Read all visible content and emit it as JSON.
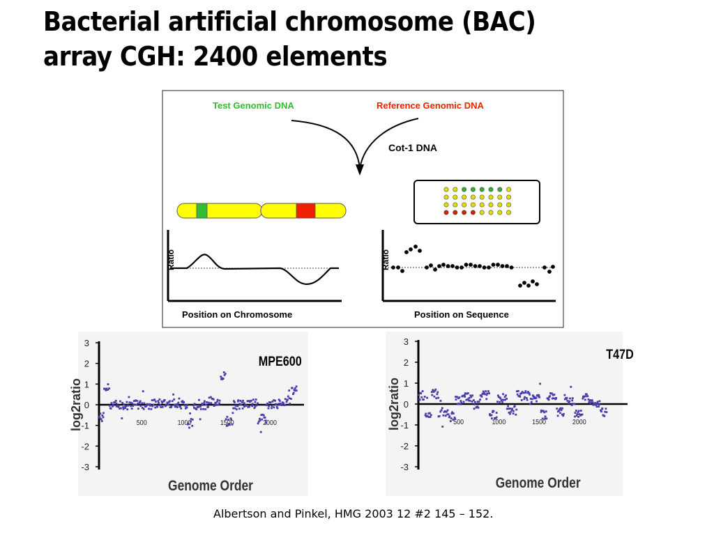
{
  "title_line1": "Bacterial artificial chromosome (BAC)",
  "title_line2": "array CGH: 2400 elements",
  "citation": "Albertson and Pinkel, HMG 2003 12 #2 145 – 152.",
  "schematic": {
    "test_label": "Test Genomic DNA",
    "reference_label": "Reference Genomic DNA",
    "cot1_label": "Cot-1  DNA",
    "left_plot_ylabel": "Ratio",
    "left_plot_xlabel": "Position on Chromosome",
    "right_plot_ylabel": "Ratio",
    "right_plot_xlabel": "Position on Sequence",
    "colors": {
      "test": "#33bb33",
      "reference": "#ee2200",
      "chromosome": "#ffff00",
      "array_yellow": "#dddd00",
      "array_red": "#cc2200",
      "array_green": "#33aa33"
    },
    "array_rows": [
      [
        "yellow",
        "yellow",
        "green",
        "green",
        "green",
        "green",
        "green",
        "yellow"
      ],
      [
        "yellow",
        "yellow",
        "yellow",
        "yellow",
        "yellow",
        "yellow",
        "yellow",
        "yellow"
      ],
      [
        "yellow",
        "yellow",
        "yellow",
        "yellow",
        "yellow",
        "yellow",
        "yellow",
        "yellow"
      ],
      [
        "red",
        "red",
        "red",
        "red",
        "yellow",
        "yellow",
        "yellow",
        "yellow"
      ]
    ]
  },
  "chart_data": [
    {
      "type": "scatter",
      "title": "MPE600",
      "xlabel": "Genome Order",
      "ylabel": "log2ratio",
      "ylim": [
        -3,
        3
      ],
      "xlim": [
        0,
        2400
      ],
      "yticks": [
        "3",
        "2",
        "1",
        "0",
        "-1",
        "-2",
        "-3"
      ],
      "xticks": [
        {
          "x": 500,
          "label": "500"
        },
        {
          "x": 1000,
          "label": "1000"
        },
        {
          "x": 1500,
          "label": "1500"
        },
        {
          "x": 2000,
          "label": "2000"
        }
      ],
      "series": [
        {
          "values_desc": "log2ratio per BAC clone",
          "segments": [
            {
              "x0": 0,
              "x1": 60,
              "y": -0.6
            },
            {
              "x0": 60,
              "x1": 120,
              "y": 0.8
            },
            {
              "x0": 120,
              "x1": 300,
              "y": 0.0
            },
            {
              "x0": 300,
              "x1": 480,
              "y": 0.0
            },
            {
              "x0": 480,
              "x1": 640,
              "y": 0.0
            },
            {
              "x0": 640,
              "x1": 800,
              "y": 0.05
            },
            {
              "x0": 800,
              "x1": 950,
              "y": 0.1
            },
            {
              "x0": 950,
              "x1": 1040,
              "y": 0.0
            },
            {
              "x0": 1040,
              "x1": 1100,
              "y": -0.9
            },
            {
              "x0": 1100,
              "x1": 1280,
              "y": 0.0
            },
            {
              "x0": 1280,
              "x1": 1420,
              "y": 0.15
            },
            {
              "x0": 1420,
              "x1": 1480,
              "y": 1.4
            },
            {
              "x0": 1480,
              "x1": 1560,
              "y": -0.8
            },
            {
              "x0": 1560,
              "x1": 1700,
              "y": 0.0
            },
            {
              "x0": 1700,
              "x1": 1860,
              "y": 0.05
            },
            {
              "x0": 1860,
              "x1": 1960,
              "y": -0.7
            },
            {
              "x0": 1960,
              "x1": 2150,
              "y": 0.05
            },
            {
              "x0": 2150,
              "x1": 2250,
              "y": 0.2
            },
            {
              "x0": 2250,
              "x1": 2320,
              "y": 0.7
            }
          ]
        }
      ]
    },
    {
      "type": "scatter",
      "title": "T47D",
      "xlabel": "Genome Order",
      "ylabel": "log2ratio",
      "ylim": [
        -3,
        3
      ],
      "xlim": [
        0,
        2600
      ],
      "yticks": [
        "3",
        "2",
        "1",
        "0",
        "-1",
        "-2",
        "-3"
      ],
      "xticks": [
        {
          "x": 500,
          "label": "500"
        },
        {
          "x": 1000,
          "label": "1000"
        },
        {
          "x": 1500,
          "label": "1500"
        },
        {
          "x": 2000,
          "label": "2000"
        }
      ],
      "series": [
        {
          "values_desc": "log2ratio per BAC clone",
          "segments": [
            {
              "x0": 0,
              "x1": 80,
              "y": 0.4
            },
            {
              "x0": 80,
              "x1": 160,
              "y": -0.5
            },
            {
              "x0": 160,
              "x1": 250,
              "y": 0.5
            },
            {
              "x0": 250,
              "x1": 380,
              "y": -0.4
            },
            {
              "x0": 380,
              "x1": 460,
              "y": -0.6
            },
            {
              "x0": 460,
              "x1": 560,
              "y": 0.2
            },
            {
              "x0": 560,
              "x1": 680,
              "y": 0.3
            },
            {
              "x0": 680,
              "x1": 760,
              "y": 0.0
            },
            {
              "x0": 760,
              "x1": 880,
              "y": 0.4
            },
            {
              "x0": 880,
              "x1": 980,
              "y": -0.5
            },
            {
              "x0": 980,
              "x1": 1100,
              "y": 0.3
            },
            {
              "x0": 1100,
              "x1": 1220,
              "y": -0.3
            },
            {
              "x0": 1220,
              "x1": 1380,
              "y": 0.4
            },
            {
              "x0": 1380,
              "x1": 1520,
              "y": 0.3
            },
            {
              "x0": 1520,
              "x1": 1600,
              "y": -0.5
            },
            {
              "x0": 1600,
              "x1": 1720,
              "y": 0.3
            },
            {
              "x0": 1720,
              "x1": 1820,
              "y": -0.4
            },
            {
              "x0": 1820,
              "x1": 1940,
              "y": 0.1
            },
            {
              "x0": 1940,
              "x1": 2040,
              "y": -0.5
            },
            {
              "x0": 2040,
              "x1": 2140,
              "y": 0.3
            },
            {
              "x0": 2140,
              "x1": 2260,
              "y": 0.0
            },
            {
              "x0": 2260,
              "x1": 2340,
              "y": -0.4
            }
          ]
        }
      ]
    }
  ]
}
